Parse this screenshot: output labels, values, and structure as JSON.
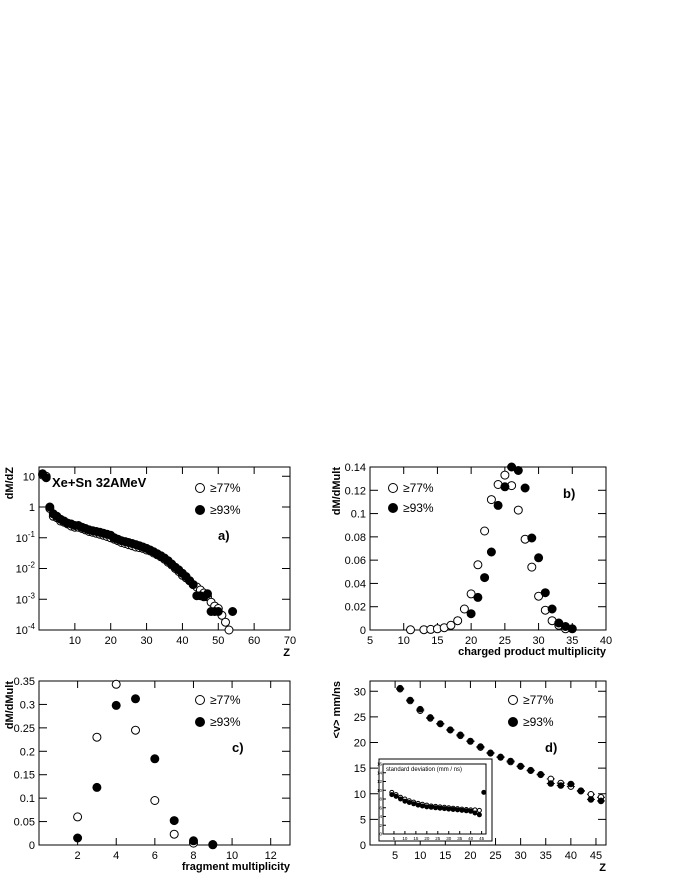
{
  "chart_data": [
    {
      "id": "a",
      "type": "scatter",
      "panel_label": "a)",
      "annotation": "Xe+Sn 32AMeV",
      "xlabel": "Z",
      "ylabel": "dM/dZ",
      "xlim": [
        0,
        70
      ],
      "ylim": [
        0.0001,
        20
      ],
      "yscale": "log",
      "x_ticks": [
        "10",
        "20",
        "30",
        "40",
        "50",
        "60",
        "70"
      ],
      "y_ticks": [
        "10",
        "1",
        "10-1",
        "10-2",
        "10-3",
        "10-4"
      ],
      "legend": {
        "position": "top-right",
        "entries": [
          "≥77%",
          "≥93%"
        ]
      },
      "series": [
        {
          "name": "≥77%",
          "marker": "open-circle",
          "x": [
            1,
            2,
            3,
            4,
            5,
            6,
            7,
            8,
            9,
            10,
            11,
            12,
            13,
            14,
            15,
            16,
            17,
            18,
            19,
            20,
            21,
            22,
            23,
            24,
            25,
            26,
            27,
            28,
            29,
            30,
            31,
            32,
            33,
            34,
            35,
            36,
            37,
            38,
            39,
            40,
            41,
            42,
            43,
            44,
            45,
            46,
            47,
            48,
            49,
            50,
            51,
            52,
            53
          ],
          "y": [
            11,
            10,
            0.9,
            0.5,
            0.45,
            0.35,
            0.32,
            0.28,
            0.24,
            0.22,
            0.22,
            0.2,
            0.18,
            0.16,
            0.15,
            0.14,
            0.13,
            0.12,
            0.11,
            0.1,
            0.09,
            0.08,
            0.07,
            0.065,
            0.06,
            0.055,
            0.05,
            0.048,
            0.045,
            0.04,
            0.037,
            0.032,
            0.028,
            0.024,
            0.02,
            0.016,
            0.013,
            0.01,
            0.008,
            0.006,
            0.005,
            0.004,
            0.003,
            0.0025,
            0.002,
            0.0016,
            0.0012,
            0.0008,
            0.0006,
            0.0005,
            0.0003,
            0.00018,
            0.0001
          ]
        },
        {
          "name": "≥93%",
          "marker": "filled-circle",
          "x": [
            1,
            2,
            3,
            4,
            5,
            6,
            7,
            8,
            9,
            10,
            11,
            12,
            13,
            14,
            15,
            16,
            17,
            18,
            19,
            20,
            21,
            22,
            23,
            24,
            25,
            26,
            27,
            28,
            29,
            30,
            31,
            32,
            33,
            34,
            35,
            36,
            37,
            38,
            39,
            40,
            41,
            42,
            43,
            44,
            45,
            46,
            47,
            48,
            49,
            50,
            54
          ],
          "y": [
            12,
            9,
            1.0,
            0.6,
            0.5,
            0.4,
            0.35,
            0.3,
            0.28,
            0.25,
            0.25,
            0.22,
            0.2,
            0.18,
            0.17,
            0.16,
            0.15,
            0.14,
            0.13,
            0.12,
            0.1,
            0.09,
            0.08,
            0.075,
            0.07,
            0.065,
            0.06,
            0.055,
            0.05,
            0.045,
            0.04,
            0.035,
            0.03,
            0.026,
            0.022,
            0.018,
            0.014,
            0.011,
            0.009,
            0.007,
            0.0055,
            0.004,
            0.003,
            0.0013,
            0.0013,
            0.0012,
            0.0015,
            0.0004,
            0.0004,
            0.0004,
            0.0004
          ]
        }
      ]
    },
    {
      "id": "b",
      "type": "scatter",
      "panel_label": "b)",
      "xlabel": "charged product multiplicity",
      "ylabel": "dM/dMult",
      "xlim": [
        5,
        40
      ],
      "ylim": [
        0,
        0.14
      ],
      "x_ticks": [
        "5",
        "10",
        "15",
        "20",
        "25",
        "30",
        "35",
        "40"
      ],
      "y_ticks": [
        "0",
        "0.02",
        "0.04",
        "0.06",
        "0.08",
        "0.1",
        "0.12",
        "0.14"
      ],
      "legend": {
        "position": "top-left",
        "entries": [
          "≥77%",
          "≥93%"
        ]
      },
      "series": [
        {
          "name": "≥77%",
          "marker": "open-circle",
          "x": [
            11,
            13,
            14,
            15,
            16,
            17,
            18,
            19,
            20,
            21,
            22,
            23,
            24,
            25,
            26,
            27,
            28,
            29,
            30,
            31,
            32,
            33,
            34
          ],
          "y": [
            0.0002,
            0.0003,
            0.0005,
            0.001,
            0.002,
            0.004,
            0.008,
            0.018,
            0.031,
            0.056,
            0.085,
            0.112,
            0.125,
            0.133,
            0.124,
            0.103,
            0.078,
            0.054,
            0.029,
            0.017,
            0.008,
            0.004,
            0.001
          ]
        },
        {
          "name": "≥93%",
          "marker": "filled-circle",
          "x": [
            20,
            21,
            22,
            23,
            24,
            25,
            26,
            27,
            28,
            29,
            30,
            31,
            32,
            33,
            34,
            35
          ],
          "y": [
            0.014,
            0.028,
            0.045,
            0.067,
            0.107,
            0.123,
            0.14,
            0.137,
            0.122,
            0.079,
            0.062,
            0.032,
            0.018,
            0.006,
            0.003,
            0.001
          ]
        }
      ]
    },
    {
      "id": "c",
      "type": "scatter",
      "panel_label": "c)",
      "xlabel": "fragment multiplicity",
      "ylabel": "dM/dMult",
      "xlim": [
        0,
        13
      ],
      "ylim": [
        0,
        0.35
      ],
      "x_ticks": [
        "2",
        "4",
        "6",
        "8",
        "10",
        "12"
      ],
      "y_ticks": [
        "0",
        "0.05",
        "0.1",
        "0.15",
        "0.2",
        "0.25",
        "0.3",
        "0.35"
      ],
      "legend": {
        "position": "top-right",
        "entries": [
          "≥77%",
          "≥93%"
        ]
      },
      "series": [
        {
          "name": "≥77%",
          "marker": "open-circle",
          "x": [
            2,
            3,
            4,
            5,
            6,
            7,
            8,
            9
          ],
          "y": [
            0.06,
            0.23,
            0.343,
            0.245,
            0.095,
            0.023,
            0.004,
            0.0005
          ]
        },
        {
          "name": "≥93%",
          "marker": "filled-circle",
          "x": [
            2,
            3,
            4,
            5,
            6,
            7,
            8,
            9
          ],
          "y": [
            0.015,
            0.123,
            0.298,
            0.312,
            0.184,
            0.052,
            0.009,
            0.001
          ]
        }
      ]
    },
    {
      "id": "d",
      "type": "scatter",
      "panel_label": "d)",
      "xlabel": "Z",
      "ylabel": "<v> mm/ns",
      "xlim": [
        0,
        47
      ],
      "ylim": [
        0,
        32
      ],
      "x_ticks": [
        "5",
        "10",
        "15",
        "20",
        "25",
        "30",
        "35",
        "40",
        "45"
      ],
      "y_ticks": [
        "0",
        "5",
        "10",
        "15",
        "20",
        "25",
        "30"
      ],
      "legend": {
        "position": "top-right",
        "entries": [
          "≥77%",
          "≥93%"
        ]
      },
      "series": [
        {
          "name": "≥77%",
          "marker": "open-circle",
          "x": [
            6,
            8,
            10,
            12,
            14,
            16,
            18,
            20,
            22,
            24,
            26,
            28,
            30,
            32,
            34,
            36,
            38,
            40,
            42,
            44,
            46
          ],
          "y": [
            30.4,
            28.1,
            26.2,
            24.7,
            23.6,
            22.4,
            21.3,
            20.2,
            19.0,
            17.9,
            17.1,
            16.2,
            15.3,
            14.5,
            13.7,
            12.9,
            12.1,
            11.4,
            10.6,
            9.9,
            9.3
          ]
        },
        {
          "name": "≥93%",
          "marker": "filled-circle",
          "x": [
            6,
            8,
            10,
            12,
            14,
            16,
            18,
            20,
            22,
            24,
            26,
            28,
            30,
            32,
            34,
            36,
            38,
            40,
            42,
            44,
            46
          ],
          "y": [
            30.6,
            28.3,
            26.5,
            24.9,
            23.7,
            22.5,
            21.5,
            20.3,
            19.2,
            18.0,
            17.2,
            16.4,
            15.4,
            14.6,
            13.8,
            12.0,
            11.6,
            11.9,
            10.5,
            8.9,
            8.6
          ]
        }
      ],
      "inset": {
        "title": "standard deviation (mm / ns)",
        "xlim": [
          0,
          47
        ],
        "ylim": [
          0,
          16
        ],
        "x_ticks": [
          "5",
          "10",
          "15",
          "20",
          "25",
          "30",
          "35",
          "40",
          "45"
        ],
        "y_ticks": [
          "0",
          "2",
          "4",
          "6",
          "8",
          "10",
          "12",
          "14",
          "16"
        ],
        "series": [
          {
            "name": "≥77%",
            "marker": "open-circle",
            "x": [
              4,
              6,
              8,
              10,
              12,
              14,
              16,
              18,
              20,
              22,
              24,
              26,
              28,
              30,
              32,
              34,
              36,
              38,
              40,
              42,
              44
            ],
            "y": [
              9.5,
              9.0,
              8.4,
              8.0,
              7.6,
              7.3,
              7.0,
              6.8,
              6.6,
              6.4,
              6.3,
              6.2,
              6.1,
              6.0,
              5.9,
              5.8,
              5.7,
              5.6,
              5.5,
              5.5,
              5.4
            ]
          },
          {
            "name": "≥93%",
            "marker": "filled-circle",
            "x": [
              4,
              6,
              8,
              10,
              12,
              14,
              16,
              18,
              20,
              22,
              24,
              26,
              28,
              30,
              32,
              34,
              36,
              38,
              40,
              42,
              44,
              46
            ],
            "y": [
              9.0,
              8.6,
              8.0,
              7.5,
              7.2,
              6.9,
              6.6,
              6.4,
              6.2,
              6.1,
              6.0,
              5.9,
              5.8,
              5.7,
              5.6,
              5.5,
              5.4,
              5.3,
              5.2,
              4.8,
              4.4,
              9.5
            ]
          }
        ]
      }
    }
  ]
}
